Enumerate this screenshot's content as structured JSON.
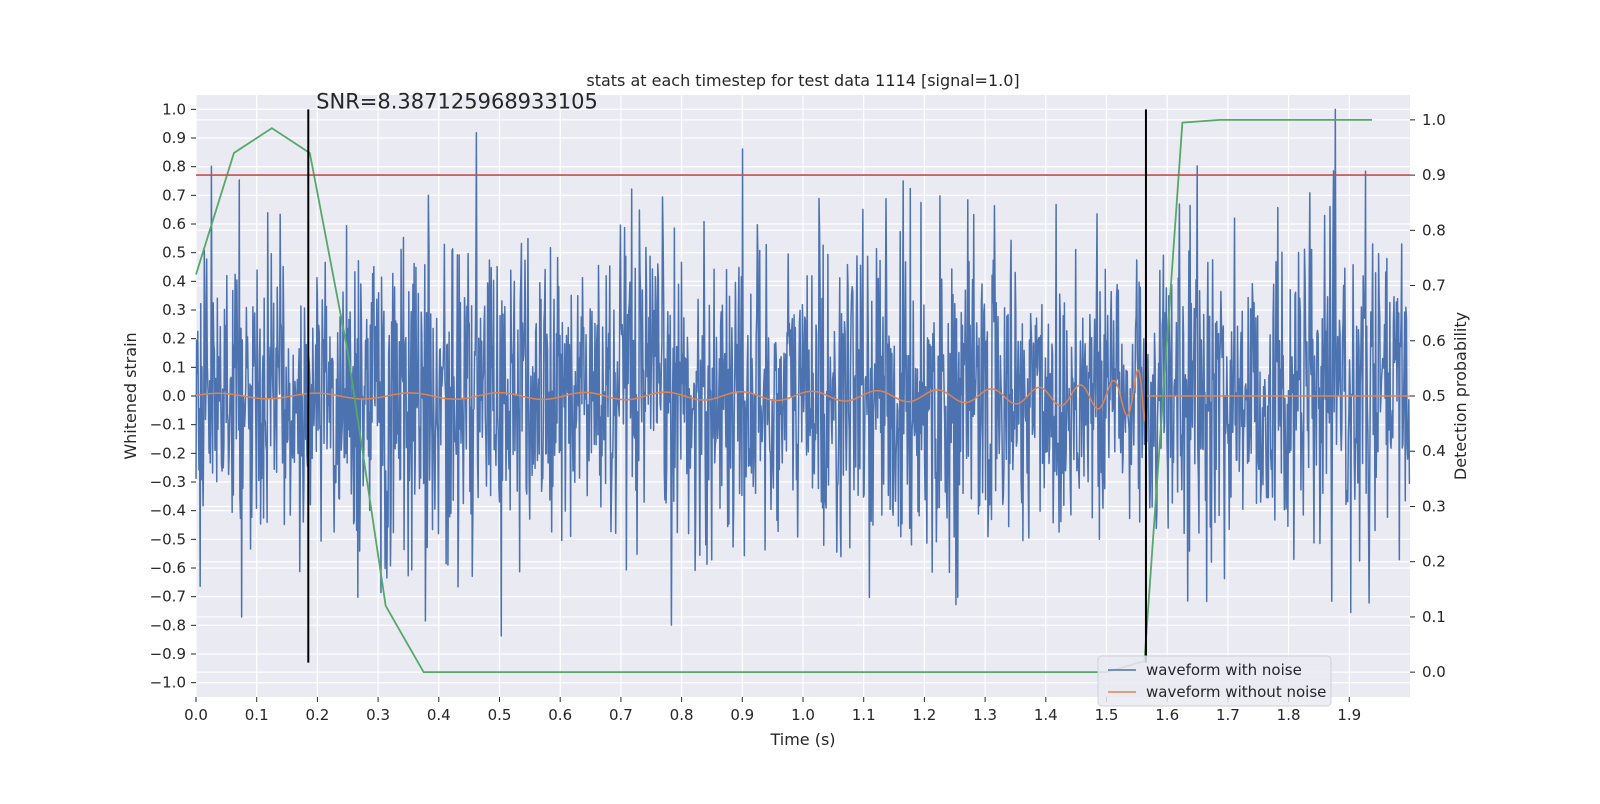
{
  "chart_data": {
    "type": "line",
    "title": "stats at each timestep for test data 1114 [signal=1.0]",
    "xlabel": "Time (s)",
    "ylabel": "Whitened strain",
    "y2label": "Detection probability",
    "xlim": [
      0.0,
      2.0
    ],
    "ylim": [
      -1.05,
      1.05
    ],
    "y2lim": [
      -0.045,
      1.045
    ],
    "xticks": [
      0.0,
      0.1,
      0.2,
      0.3,
      0.4,
      0.5,
      0.6,
      0.7,
      0.8,
      0.9,
      1.0,
      1.1,
      1.2,
      1.3,
      1.4,
      1.5,
      1.6,
      1.7,
      1.8,
      1.9
    ],
    "yticks": [
      -1.0,
      -0.9,
      -0.8,
      -0.7,
      -0.6,
      -0.5,
      -0.4,
      -0.3,
      -0.2,
      -0.1,
      0.0,
      0.1,
      0.2,
      0.3,
      0.4,
      0.5,
      0.6,
      0.7,
      0.8,
      0.9,
      1.0
    ],
    "y2ticks": [
      0.0,
      0.1,
      0.2,
      0.3,
      0.4,
      0.5,
      0.6,
      0.7,
      0.8,
      0.9,
      1.0
    ],
    "grid": true,
    "legend_position": "bottom-right",
    "annotation": "SNR=8.387125968933105",
    "threshold": {
      "value": 0.9,
      "axis": "y2",
      "color": "#c44e52"
    },
    "vlines": [
      {
        "x": 0.185,
        "ymin": -0.93,
        "ymax": 1.0
      },
      {
        "x": 1.565,
        "ymin": -0.93,
        "ymax": 1.0
      }
    ],
    "series": [
      {
        "name": "waveform with noise",
        "axis": "y",
        "color": "#4c72b0",
        "kind": "noise",
        "x_range": [
          0.0,
          2.0
        ],
        "samples": 2048
      },
      {
        "name": "waveform without noise",
        "axis": "y",
        "color": "#dd8452",
        "kind": "chirp",
        "x_range": [
          0.0,
          2.0
        ],
        "merger_time": 1.565
      },
      {
        "name": "detection probability",
        "axis": "y2",
        "color": "#55a868",
        "x": [
          0.0,
          0.0625,
          0.125,
          0.1875,
          0.25,
          0.3125,
          0.375,
          0.4375,
          0.5,
          0.5625,
          0.625,
          0.6875,
          0.75,
          0.8125,
          0.875,
          0.9375,
          1.0,
          1.0625,
          1.125,
          1.1875,
          1.25,
          1.3125,
          1.375,
          1.4375,
          1.5,
          1.5625,
          1.625,
          1.6875,
          1.75,
          1.8125,
          1.875,
          1.9375
        ],
        "values": [
          0.72,
          0.94,
          0.985,
          0.94,
          0.58,
          0.12,
          0.0,
          0.0,
          0.0,
          0.0,
          0.0,
          0.0,
          0.0,
          0.0,
          0.0,
          0.0,
          0.0,
          0.0,
          0.0,
          0.0,
          0.0,
          0.0,
          0.0,
          0.0,
          0.0,
          0.02,
          0.995,
          1.0,
          1.0,
          1.0,
          1.0,
          1.0
        ]
      }
    ]
  }
}
